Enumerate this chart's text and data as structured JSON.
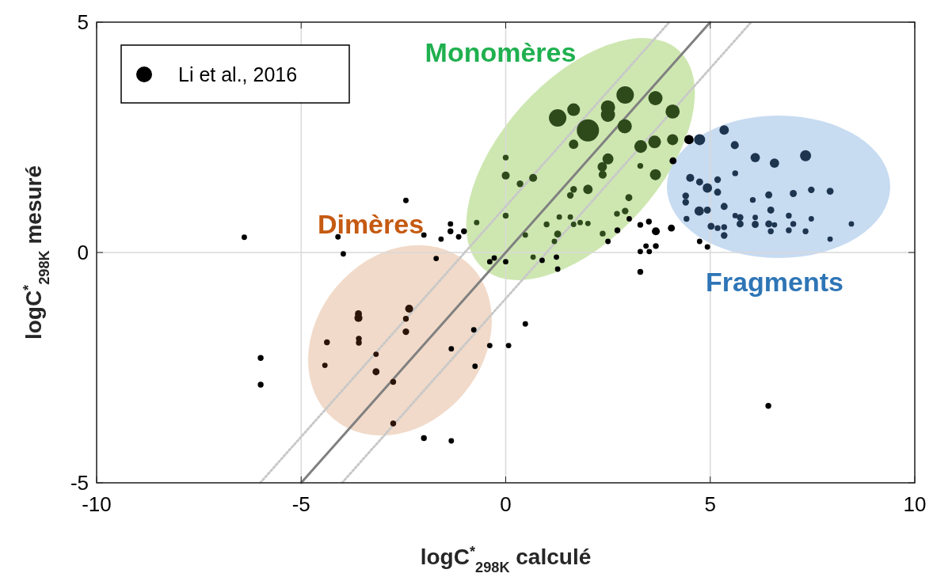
{
  "chart_data": {
    "type": "bubble",
    "xlabel": "logC$^{*}$$_{298K}$ calculé",
    "ylabel": "logC$^{*}$$_{298K}$ mesuré",
    "xlim": [
      -10,
      10
    ],
    "ylim": [
      -5,
      5
    ],
    "xticks": [
      -10,
      -5,
      0,
      5,
      10
    ],
    "yticks": [
      -5,
      0,
      5
    ],
    "grid": true,
    "legend": "top left",
    "marker": "circle",
    "annotations": [
      "Monomères",
      "Dimères",
      "Fragments"
    ],
    "series": [
      {
        "type": "line",
        "color": "#c8c8c8",
        "line_style": "dotted",
        "marker": "none",
        "x": [
          -6,
          4
        ],
        "values": [
          -5,
          5
        ]
      },
      {
        "type": "line",
        "color": "#c8c8c8",
        "line_style": "dotted",
        "marker": "none",
        "x": [
          -4,
          6
        ],
        "values": [
          -5,
          5
        ]
      },
      {
        "type": "line",
        "color": "#808080",
        "line_style": "solid",
        "marker": "none",
        "x": [
          -5,
          5
        ],
        "values": [
          -5,
          5
        ]
      },
      {
        "name": "Li et al., 2016",
        "color": "#000000",
        "x": [
          2.92,
          3.66,
          2.5,
          2.5,
          1.66,
          1.27,
          2.01,
          4.08,
          2.91,
          1.66,
          3.3,
          3.64,
          4.08,
          2.5,
          2.36,
          2.37,
          3.66,
          2.01,
          0,
          0.67,
          0.35,
          3.29,
          3.01,
          1.66,
          1.58,
          0,
          0,
          1,
          1.27,
          2.92,
          2.72,
          1.31,
          1.58,
          1.82,
          2.01,
          1.66,
          -0.71,
          0.48,
          1.19,
          0.67,
          2.37,
          -1.35,
          -1.35,
          -1.02,
          -1.15,
          -1.58,
          -2,
          -0.39,
          -0.28,
          0.89,
          1.24,
          1.27,
          0.48,
          3.02,
          3.29,
          3.5,
          3.67,
          4.05,
          2.73,
          2.5,
          3.43,
          3.67,
          3.29,
          3.51,
          3.29,
          -1.7,
          0,
          -2.44,
          -6.39,
          -4.1,
          -3.97,
          -3.6,
          -3.6,
          -2.36,
          -2.44,
          -2.44,
          -4.37,
          -3.59,
          -3.59,
          -3.17,
          -4.42,
          -3.17,
          -2.75,
          -2.75,
          -2,
          -1.33,
          -5.99,
          -5.99,
          -1.33,
          -0.78,
          -0.39,
          -0.75,
          0.07,
          6.42,
          4.48,
          4.09,
          4.74,
          4.93,
          5.34,
          4.74,
          5.6,
          6.1,
          6.57,
          7.33,
          5.61,
          4.51,
          4.74,
          4.93,
          5.18,
          5.18,
          4.4,
          4.4,
          4.73,
          4.93,
          5.34,
          6.04,
          6.43,
          7.03,
          7.47,
          7.93,
          6.48,
          4.42,
          5.02,
          5.18,
          5.34,
          5.34,
          5.61,
          5.73,
          5.73,
          6.1,
          6.1,
          6.43,
          6.57,
          6.48,
          6.92,
          7.03,
          6.92,
          7.33,
          7.47,
          8.45,
          7.93
        ],
        "values": [
          3.42,
          3.35,
          3.15,
          2.99,
          3.1,
          2.92,
          2.65,
          3.06,
          2.74,
          2.35,
          2.3,
          2.4,
          2.45,
          2.03,
          1.86,
          1.69,
          1.69,
          1.37,
          1.67,
          1.62,
          1.49,
          1.88,
          1.19,
          1.37,
          1.24,
          2.06,
          0.8,
          0.61,
          0.4,
          0.9,
          0.84,
          0.77,
          0.77,
          0.65,
          0.63,
          0.61,
          0.65,
          0.38,
          0.24,
          -0.1,
          0.41,
          0.62,
          0.46,
          0.46,
          0.34,
          0.29,
          0.38,
          -0.2,
          -0.12,
          -0.17,
          -0.1,
          -0.36,
          -1.55,
          0.73,
          0.6,
          0.67,
          0.46,
          0.53,
          0.48,
          0.24,
          0.14,
          0.14,
          0.02,
          0.02,
          -0.42,
          -0.13,
          -0.2,
          1.13,
          0.33,
          0.34,
          -0.03,
          -1.33,
          -1.42,
          -1.22,
          -1.44,
          -1.72,
          -1.95,
          -1.87,
          -1.96,
          -2.21,
          -2.45,
          -2.59,
          -2.81,
          -3.71,
          -4.03,
          -4.09,
          -2.29,
          -2.87,
          -2.09,
          -1.68,
          -2.02,
          -2.47,
          -2.02,
          -3.33,
          2.45,
          1.99,
          0.24,
          0.12,
          2.66,
          2.45,
          2.33,
          2.06,
          1.94,
          2.1,
          1.72,
          1.62,
          1.53,
          1.4,
          1.58,
          1.31,
          1.23,
          1.09,
          0.9,
          0.92,
          1,
          1.14,
          1.25,
          1.28,
          1.36,
          1.33,
          0.92,
          0.73,
          0.57,
          0.53,
          0.55,
          0.37,
          0.8,
          0.76,
          0.62,
          0.76,
          0.61,
          0.62,
          0.6,
          0.46,
          0.8,
          0.62,
          0.48,
          0.46,
          0.73,
          0.62,
          0.29
        ],
        "sizes": [
          0.62,
          0.41,
          0.41,
          0.41,
          0.33,
          0.62,
          1,
          0.41,
          0.41,
          0.18,
          0.33,
          0.33,
          0.25,
          0.25,
          0.18,
          0.13,
          0.25,
          0.18,
          0.13,
          0.13,
          0.09,
          0.07,
          0.1,
          0.09,
          0.09,
          0.07,
          0.07,
          0.07,
          0.1,
          0.09,
          0.07,
          0.06,
          0.06,
          0.06,
          0.06,
          0.06,
          0.06,
          0.06,
          0.06,
          0.06,
          0.07,
          0.06,
          0.07,
          0.07,
          0.06,
          0.06,
          0.06,
          0.06,
          0.06,
          0.06,
          0.06,
          0.06,
          0.06,
          0.06,
          0.07,
          0.07,
          0.13,
          0.1,
          0.07,
          0.06,
          0.06,
          0.07,
          0.06,
          0.06,
          0.07,
          0.06,
          0.06,
          0.06,
          0.06,
          0.06,
          0.06,
          0.1,
          0.13,
          0.13,
          0.07,
          0.09,
          0.07,
          0.07,
          0.07,
          0.06,
          0.06,
          0.1,
          0.07,
          0.07,
          0.07,
          0.06,
          0.07,
          0.07,
          0.06,
          0.06,
          0.06,
          0.06,
          0.06,
          0.07,
          0.18,
          0.1,
          0.06,
          0.06,
          0.18,
          0.25,
          0.13,
          0.18,
          0.18,
          0.25,
          0.07,
          0.13,
          0.1,
          0.18,
          0.09,
          0.1,
          0.09,
          0.09,
          0.18,
          0.1,
          0.1,
          0.07,
          0.1,
          0.1,
          0.09,
          0.1,
          0.1,
          0.07,
          0.1,
          0.07,
          0.07,
          0.09,
          0.06,
          0.09,
          0.1,
          0.06,
          0.1,
          0.1,
          0.06,
          0.07,
          0.07,
          0.07,
          0.07,
          0.07,
          0.06,
          0.06,
          0.06
        ],
        "colors": [
          "#2e4a1b",
          "#2e4a1b",
          "#2e4a1b",
          "#2e4a1b",
          "#2e4a1b",
          "#2e4a1b",
          "#2e4a1b",
          "#2e4a1b",
          "#2e4a1b",
          "#2e4a1b",
          "#2e4a1b",
          "#2e4a1b",
          "#2e4a1b",
          "#2e4a1b",
          "#2e4a1b",
          "#2e4a1b",
          "#2e4a1b",
          "#2e4a1b",
          "#2e4a1b",
          "#2e4a1b",
          "#2e4a1b",
          "#2e4a1b",
          "#2e4a1b",
          "#2e4a1b",
          "#2e4a1b",
          "#2e4a1b",
          "#2e4a1b",
          "#2e4a1b",
          "#2e4a1b",
          "#2e4a1b",
          "#2e4a1b",
          "#2e4a1b",
          "#2e4a1b",
          "#2e4a1b",
          "#2e4a1b",
          "#2e4a1b",
          "#2e4a1b",
          "#2e4a1b",
          "#2e4a1b",
          "#2e4a1b",
          "#2e4a1b",
          "#000000",
          "#000000",
          "#000000",
          "#000000",
          "#000000",
          "#000000",
          "#000000",
          "#000000",
          "#000000",
          "#000000",
          "#000000",
          "#000000",
          "#000000",
          "#000000",
          "#000000",
          "#000000",
          "#000000",
          "#000000",
          "#000000",
          "#000000",
          "#000000",
          "#000000",
          "#000000",
          "#000000",
          "#000000",
          "#000000",
          "#000000",
          "#000000",
          "#000000",
          "#000000",
          "#2b1408",
          "#2b1408",
          "#2b1408",
          "#2b1408",
          "#2b1408",
          "#2b1408",
          "#2b1408",
          "#2b1408",
          "#2b1408",
          "#2b1408",
          "#2b1408",
          "#2b1408",
          "#2b1408",
          "#000000",
          "#000000",
          "#000000",
          "#000000",
          "#000000",
          "#000000",
          "#000000",
          "#000000",
          "#000000",
          "#000000",
          "#000000",
          "#000000",
          "#000000",
          "#000000",
          "#1e3550",
          "#1e3550",
          "#1e3550",
          "#1e3550",
          "#1e3550",
          "#1e3550",
          "#1e3550",
          "#1e3550",
          "#1e3550",
          "#1e3550",
          "#1e3550",
          "#1e3550",
          "#1e3550",
          "#1e3550",
          "#1e3550",
          "#1e3550",
          "#1e3550",
          "#1e3550",
          "#1e3550",
          "#1e3550",
          "#1e3550",
          "#1e3550",
          "#1e3550",
          "#1e3550",
          "#1e3550",
          "#1e3550",
          "#1e3550",
          "#1e3550",
          "#1e3550",
          "#1e3550",
          "#1e3550",
          "#1e3550",
          "#1e3550",
          "#1e3550",
          "#1e3550",
          "#1e3550",
          "#1e3550",
          "#1e3550",
          "#1e3550",
          "#1e3550",
          "#1e3550",
          "#1e3550",
          "#1e3550"
        ]
      }
    ]
  }
}
